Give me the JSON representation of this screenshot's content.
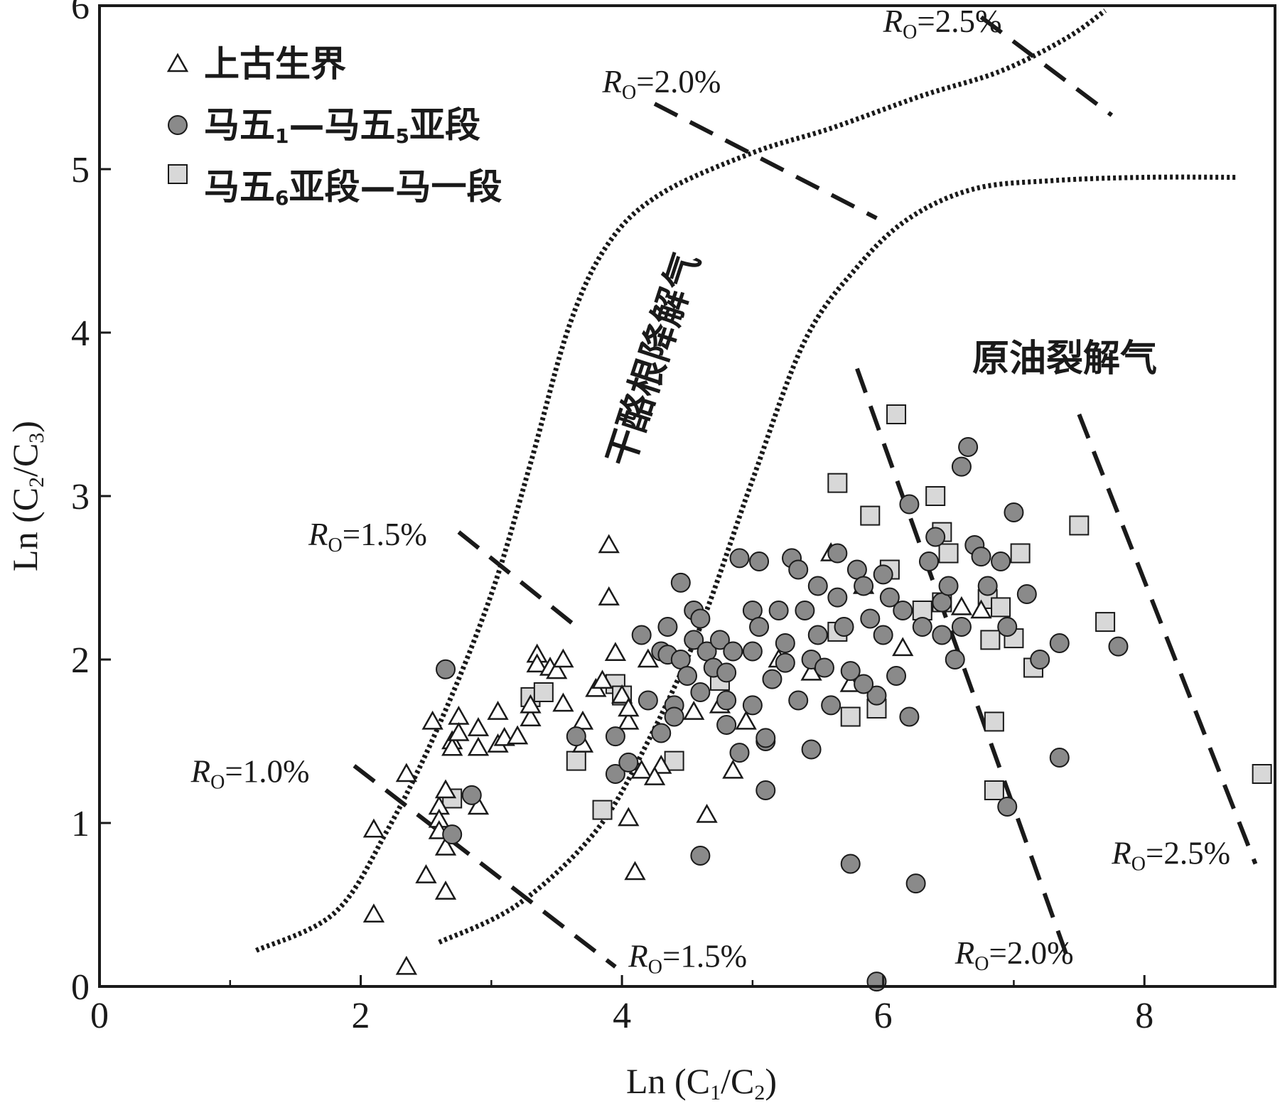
{
  "chart_data": {
    "type": "scatter",
    "xlabel": "Ln (C1/C2)",
    "ylabel": "Ln (C2/C3)",
    "xlim": [
      0,
      9
    ],
    "ylim": [
      0,
      6
    ],
    "xticks": [
      "0",
      "2",
      "4",
      "6",
      "8"
    ],
    "yticks": [
      "0",
      "1",
      "2",
      "3",
      "4",
      "5",
      "6"
    ],
    "grid": false,
    "legend_position": "top-left",
    "legend": [
      "上古生界",
      "马五1—马五5亚段",
      "马五6亚段—马一段"
    ],
    "region_labels": [
      "干酪根降解气",
      "原油裂解气"
    ],
    "ro_labels": [
      {
        "text": "=2.5%",
        "x": 6.0,
        "y": 5.84
      },
      {
        "text": "=2.0%",
        "x": 3.85,
        "y": 5.47
      },
      {
        "text": "=1.5%",
        "x": 1.6,
        "y": 2.7
      },
      {
        "text": "=1.0%",
        "x": 0.7,
        "y": 1.25
      },
      {
        "text": "=1.5%",
        "x": 4.05,
        "y": 0.12
      },
      {
        "text": "=2.0%",
        "x": 6.55,
        "y": 0.14
      },
      {
        "text": "=2.5%",
        "x": 7.75,
        "y": 0.75
      }
    ],
    "series": [
      {
        "name": "上古生界",
        "marker": "triangle",
        "fill": "#ffffff",
        "points": [
          [
            2.1,
            0.96
          ],
          [
            2.1,
            0.44
          ],
          [
            2.35,
            0.12
          ],
          [
            2.35,
            1.3
          ],
          [
            2.5,
            0.68
          ],
          [
            2.55,
            1.62
          ],
          [
            2.6,
            1.1
          ],
          [
            2.6,
            1.02
          ],
          [
            2.65,
            1.2
          ],
          [
            2.65,
            0.85
          ],
          [
            2.65,
            0.58
          ],
          [
            2.6,
            0.95
          ],
          [
            2.7,
            1.5
          ],
          [
            2.7,
            1.46
          ],
          [
            2.75,
            1.65
          ],
          [
            2.75,
            1.55
          ],
          [
            2.9,
            1.58
          ],
          [
            2.9,
            1.46
          ],
          [
            2.9,
            1.1
          ],
          [
            3.05,
            1.68
          ],
          [
            3.05,
            1.48
          ],
          [
            3.1,
            1.52
          ],
          [
            3.2,
            1.53
          ],
          [
            3.3,
            1.64
          ],
          [
            3.3,
            1.72
          ],
          [
            3.35,
            2.03
          ],
          [
            3.35,
            1.97
          ],
          [
            3.45,
            1.95
          ],
          [
            3.5,
            1.93
          ],
          [
            3.55,
            2.0
          ],
          [
            3.55,
            1.73
          ],
          [
            3.7,
            1.62
          ],
          [
            3.7,
            1.48
          ],
          [
            3.8,
            1.82
          ],
          [
            3.85,
            1.87
          ],
          [
            3.9,
            2.38
          ],
          [
            3.9,
            2.7
          ],
          [
            3.95,
            2.04
          ],
          [
            4.0,
            1.78
          ],
          [
            4.05,
            1.62
          ],
          [
            4.05,
            1.7
          ],
          [
            4.05,
            1.03
          ],
          [
            4.1,
            0.7
          ],
          [
            4.15,
            1.32
          ],
          [
            4.2,
            2.0
          ],
          [
            4.3,
            1.35
          ],
          [
            4.25,
            1.28
          ],
          [
            4.55,
            1.68
          ],
          [
            4.65,
            1.05
          ],
          [
            4.75,
            1.72
          ],
          [
            4.85,
            1.32
          ],
          [
            4.95,
            1.62
          ],
          [
            5.6,
            2.65
          ],
          [
            5.75,
            1.85
          ],
          [
            5.85,
            2.45
          ],
          [
            6.15,
            2.07
          ],
          [
            6.6,
            2.32
          ],
          [
            6.75,
            2.3
          ],
          [
            5.45,
            1.92
          ],
          [
            5.2,
            2.0
          ]
        ]
      },
      {
        "name": "马五1—马五5亚段",
        "marker": "circle",
        "fill": "#8a8a8a",
        "points": [
          [
            2.65,
            1.94
          ],
          [
            2.7,
            0.93
          ],
          [
            2.85,
            1.17
          ],
          [
            3.65,
            1.53
          ],
          [
            3.95,
            1.3
          ],
          [
            3.95,
            1.53
          ],
          [
            4.05,
            1.37
          ],
          [
            4.15,
            2.15
          ],
          [
            4.2,
            1.75
          ],
          [
            4.3,
            2.05
          ],
          [
            4.3,
            1.55
          ],
          [
            4.35,
            2.2
          ],
          [
            4.35,
            2.03
          ],
          [
            4.4,
            1.72
          ],
          [
            4.4,
            1.65
          ],
          [
            4.45,
            2.47
          ],
          [
            4.45,
            2.0
          ],
          [
            4.5,
            1.9
          ],
          [
            4.55,
            2.3
          ],
          [
            4.55,
            2.12
          ],
          [
            4.6,
            2.25
          ],
          [
            4.6,
            1.8
          ],
          [
            4.6,
            0.8
          ],
          [
            4.65,
            2.05
          ],
          [
            4.7,
            1.95
          ],
          [
            4.75,
            2.12
          ],
          [
            4.8,
            1.92
          ],
          [
            4.8,
            1.75
          ],
          [
            4.85,
            2.05
          ],
          [
            4.9,
            2.62
          ],
          [
            4.9,
            1.43
          ],
          [
            5.0,
            2.3
          ],
          [
            5.0,
            2.05
          ],
          [
            5.0,
            1.72
          ],
          [
            5.05,
            2.6
          ],
          [
            5.05,
            2.2
          ],
          [
            5.1,
            1.5
          ],
          [
            5.1,
            1.2
          ],
          [
            5.15,
            1.88
          ],
          [
            5.2,
            2.3
          ],
          [
            5.25,
            2.1
          ],
          [
            5.25,
            1.98
          ],
          [
            5.3,
            2.62
          ],
          [
            5.35,
            2.55
          ],
          [
            5.35,
            1.75
          ],
          [
            5.4,
            2.3
          ],
          [
            5.45,
            2.0
          ],
          [
            5.45,
            1.45
          ],
          [
            5.5,
            2.45
          ],
          [
            5.5,
            2.15
          ],
          [
            5.55,
            1.95
          ],
          [
            5.6,
            1.72
          ],
          [
            5.65,
            2.65
          ],
          [
            5.65,
            2.38
          ],
          [
            5.7,
            2.2
          ],
          [
            5.75,
            1.93
          ],
          [
            5.75,
            0.75
          ],
          [
            5.8,
            2.55
          ],
          [
            5.85,
            2.45
          ],
          [
            5.9,
            2.25
          ],
          [
            5.95,
            1.78
          ],
          [
            6.0,
            2.52
          ],
          [
            6.05,
            2.38
          ],
          [
            6.1,
            1.9
          ],
          [
            6.15,
            2.3
          ],
          [
            6.2,
            1.65
          ],
          [
            6.2,
            2.95
          ],
          [
            6.25,
            0.63
          ],
          [
            6.3,
            2.2
          ],
          [
            6.35,
            2.6
          ],
          [
            6.4,
            2.75
          ],
          [
            6.45,
            2.15
          ],
          [
            6.45,
            2.35
          ],
          [
            6.5,
            2.45
          ],
          [
            6.55,
            2.0
          ],
          [
            6.6,
            2.2
          ],
          [
            6.6,
            3.18
          ],
          [
            6.65,
            3.3
          ],
          [
            6.7,
            2.7
          ],
          [
            6.75,
            2.63
          ],
          [
            6.8,
            2.45
          ],
          [
            6.9,
            2.6
          ],
          [
            6.95,
            2.2
          ],
          [
            6.95,
            1.1
          ],
          [
            7.0,
            2.9
          ],
          [
            7.1,
            2.4
          ],
          [
            7.2,
            2.0
          ],
          [
            7.35,
            1.4
          ],
          [
            7.35,
            2.1
          ],
          [
            5.95,
            0.03
          ],
          [
            5.1,
            1.52
          ],
          [
            4.8,
            1.6
          ],
          [
            5.85,
            1.85
          ],
          [
            6.0,
            2.15
          ],
          [
            7.8,
            2.08
          ]
        ]
      },
      {
        "name": "马五6亚段—马一段",
        "marker": "square",
        "fill": "#d8d8d8",
        "points": [
          [
            2.7,
            1.15
          ],
          [
            3.3,
            1.77
          ],
          [
            3.4,
            1.8
          ],
          [
            3.65,
            1.38
          ],
          [
            3.85,
            1.08
          ],
          [
            3.95,
            1.85
          ],
          [
            4.0,
            1.78
          ],
          [
            4.4,
            1.38
          ],
          [
            4.75,
            1.87
          ],
          [
            5.65,
            2.17
          ],
          [
            5.65,
            3.08
          ],
          [
            5.75,
            1.65
          ],
          [
            5.9,
            2.88
          ],
          [
            5.95,
            1.7
          ],
          [
            6.05,
            2.55
          ],
          [
            6.1,
            3.5
          ],
          [
            6.3,
            2.3
          ],
          [
            6.4,
            3.0
          ],
          [
            6.45,
            2.35
          ],
          [
            6.45,
            2.78
          ],
          [
            6.5,
            2.65
          ],
          [
            6.8,
            2.37
          ],
          [
            6.82,
            2.12
          ],
          [
            6.85,
            1.62
          ],
          [
            6.85,
            1.2
          ],
          [
            6.9,
            2.32
          ],
          [
            7.0,
            2.13
          ],
          [
            7.05,
            2.65
          ],
          [
            7.15,
            1.95
          ],
          [
            7.5,
            2.82
          ],
          [
            7.7,
            2.23
          ],
          [
            8.9,
            1.3
          ]
        ]
      }
    ],
    "curves": {
      "kerogen_left": [
        [
          1.2,
          0.22
        ],
        [
          1.8,
          0.45
        ],
        [
          2.2,
          0.95
        ],
        [
          2.6,
          1.6
        ],
        [
          3.0,
          2.4
        ],
        [
          3.3,
          3.2
        ],
        [
          3.6,
          4.05
        ],
        [
          3.9,
          4.55
        ],
        [
          4.3,
          4.85
        ],
        [
          5.0,
          5.1
        ],
        [
          5.6,
          5.25
        ],
        [
          6.3,
          5.45
        ],
        [
          6.9,
          5.6
        ],
        [
          7.4,
          5.8
        ],
        [
          7.7,
          5.97
        ]
      ],
      "kerogen_right": [
        [
          2.6,
          0.27
        ],
        [
          3.2,
          0.5
        ],
        [
          3.8,
          0.95
        ],
        [
          4.2,
          1.5
        ],
        [
          4.6,
          2.2
        ],
        [
          5.0,
          3.1
        ],
        [
          5.4,
          3.95
        ],
        [
          5.8,
          4.4
        ],
        [
          6.2,
          4.7
        ],
        [
          6.7,
          4.88
        ],
        [
          7.3,
          4.93
        ],
        [
          8.0,
          4.95
        ],
        [
          8.7,
          4.95
        ]
      ],
      "ro_dash": [
        [
          [
            1.95,
            1.35
          ],
          [
            3.95,
            0.12
          ]
        ],
        [
          [
            2.75,
            2.78
          ],
          [
            3.7,
            2.17
          ]
        ],
        [
          [
            4.25,
            5.4
          ],
          [
            5.95,
            4.7
          ]
        ],
        [
          [
            5.8,
            3.78
          ],
          [
            7.4,
            0.2
          ]
        ],
        [
          [
            6.75,
            5.93
          ],
          [
            7.75,
            5.33
          ]
        ],
        [
          [
            7.5,
            3.5
          ],
          [
            8.85,
            0.75
          ]
        ]
      ]
    }
  }
}
